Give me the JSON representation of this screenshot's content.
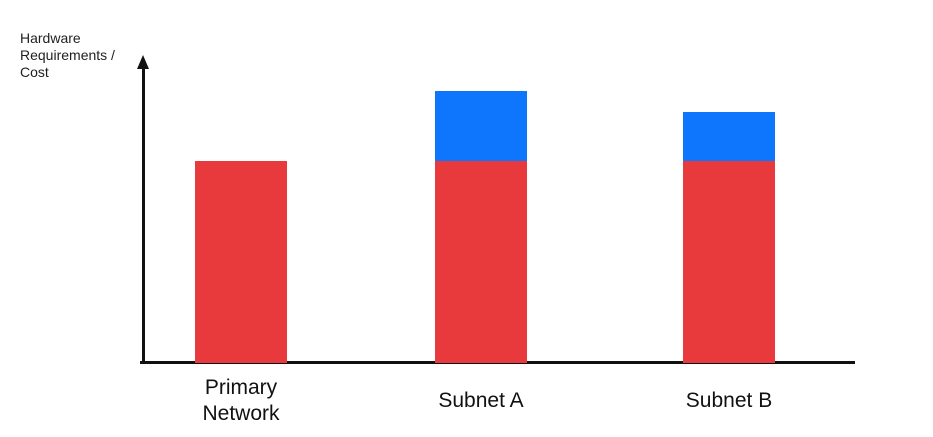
{
  "axis": {
    "y_label": "Hardware\nRequirements /\nCost",
    "color": "#111111"
  },
  "colors": {
    "red": "#E8393C",
    "blue": "#0E76FD",
    "axis": "#111111",
    "background": "#FFFFFF"
  },
  "chart_data": {
    "type": "bar",
    "subtype": "stacked",
    "title": "",
    "xlabel": "",
    "ylabel": "Hardware Requirements / Cost",
    "categories": [
      "Primary Network",
      "Subnet A",
      "Subnet B"
    ],
    "series": [
      {
        "name": "red",
        "color": "#E8393C",
        "values": [
          66,
          66,
          66
        ]
      },
      {
        "name": "blue",
        "color": "#0E76FD",
        "values": [
          0,
          23,
          16
        ]
      }
    ],
    "ylim": [
      0,
      100
    ],
    "grid": false,
    "legend": "none",
    "note": "Y axis is unlabeled/qualitative; values are relative heights on a 0-100 scale read from bar pixel heights"
  }
}
